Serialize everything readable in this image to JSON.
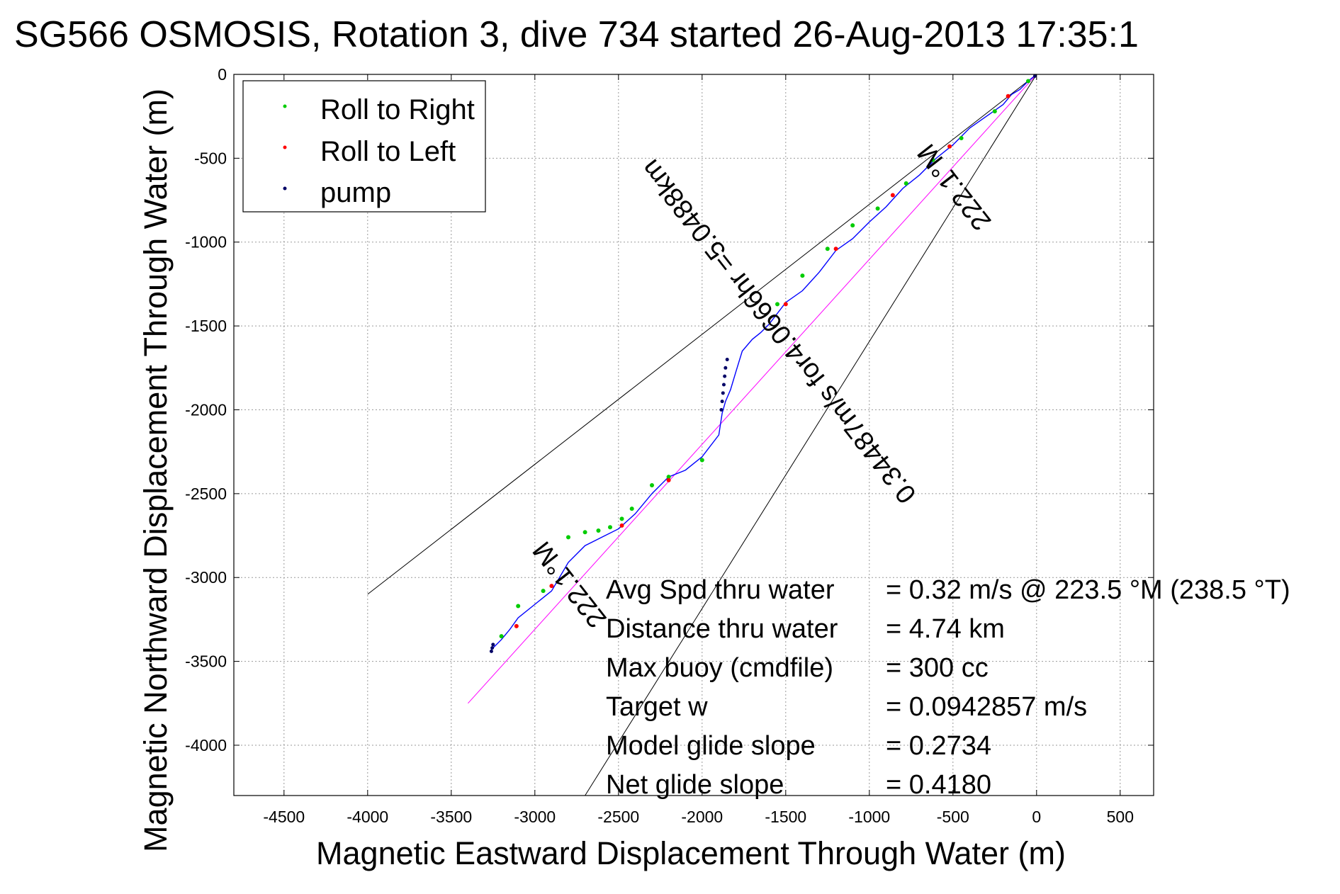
{
  "chart_data": {
    "type": "line",
    "title": "SG566 OSMOSIS, Rotation 3, dive 734 started 26-Aug-2013 17:35:1",
    "xlabel": "Magnetic Eastward Displacement Through Water (m)",
    "ylabel": "Magnetic Northward Displacement Through Water (m)",
    "xlim": [
      -4800,
      700
    ],
    "ylim": [
      -4300,
      0
    ],
    "x_ticks": [
      -4500,
      -4000,
      -3500,
      -3000,
      -2500,
      -2000,
      -1500,
      -1000,
      -500,
      0,
      500
    ],
    "y_ticks": [
      0,
      -500,
      -1000,
      -1500,
      -2000,
      -2500,
      -3000,
      -3500,
      -4000
    ],
    "grid": true,
    "legend_placement": "top-left",
    "legend": [
      {
        "label": "Roll to Right",
        "color": "#00cc00"
      },
      {
        "label": "Roll to Left",
        "color": "#ff0000"
      },
      {
        "label": "pump",
        "color": "#000066"
      }
    ],
    "series": [
      {
        "color": "#0000ff",
        "x": [
          0,
          -50,
          -100,
          -150,
          -200,
          -300,
          -400,
          -500,
          -600,
          -700,
          -800,
          -900,
          -1000,
          -1100,
          -1200,
          -1300,
          -1400,
          -1500,
          -1600,
          -1650,
          -1700,
          -1760,
          -1800,
          -1830,
          -1860,
          -1880,
          -1900,
          -2000,
          -2100,
          -2200,
          -2300,
          -2400,
          -2500,
          -2600,
          -2700,
          -2800,
          -2900,
          -3000,
          -3100,
          -3150,
          -3200,
          -3260
        ],
        "y": [
          0,
          -40,
          -90,
          -120,
          -180,
          -250,
          -320,
          -420,
          -500,
          -600,
          -680,
          -790,
          -880,
          -980,
          -1050,
          -1180,
          -1290,
          -1360,
          -1490,
          -1540,
          -1580,
          -1650,
          -1780,
          -1880,
          -1950,
          -2020,
          -2150,
          -2280,
          -2360,
          -2400,
          -2500,
          -2620,
          -2710,
          -2760,
          -2810,
          -2910,
          -3080,
          -3160,
          -3240,
          -3310,
          -3370,
          -3430
        ]
      },
      {
        "color": "#ff00ff",
        "x": [
          0,
          -3400
        ],
        "y": [
          0,
          -3750
        ]
      },
      {
        "color": "#000000",
        "x": [
          0,
          -4000
        ],
        "y": [
          0,
          -3100
        ]
      },
      {
        "color": "#000000",
        "x": [
          0,
          -2700
        ],
        "y": [
          0,
          -4300
        ]
      }
    ],
    "roll_to_right": {
      "x": [
        -50,
        -250,
        -450,
        -620,
        -780,
        -950,
        -1100,
        -1250,
        -1400,
        -1550,
        -2000,
        -2200,
        -2300,
        -2420,
        -2480,
        -2550,
        -2620,
        -2700,
        -2800,
        -2950,
        -3100,
        -3200
      ],
      "y": [
        -40,
        -220,
        -380,
        -510,
        -650,
        -800,
        -900,
        -1040,
        -1200,
        -1370,
        -2300,
        -2400,
        -2450,
        -2590,
        -2650,
        -2700,
        -2720,
        -2730,
        -2760,
        -3080,
        -3170,
        -3350
      ]
    },
    "roll_to_left": {
      "x": [
        -170,
        -520,
        -860,
        -1200,
        -1500,
        -2200,
        -2480,
        -2900,
        -3110
      ],
      "y": [
        -130,
        -430,
        -720,
        -1040,
        -1370,
        -2420,
        -2690,
        -3050,
        -3290
      ]
    },
    "pump": {
      "x": [
        -10,
        -1850,
        -1860,
        -1865,
        -1870,
        -1875,
        -1880,
        -1885,
        -3250,
        -3255,
        -3260
      ],
      "y": [
        -10,
        -1700,
        -1750,
        -1800,
        -1850,
        -1900,
        -1950,
        -2000,
        -3400,
        -3420,
        -3440
      ]
    },
    "annotations": [
      {
        "text": "222.1°M",
        "x": -450,
        "y": -640,
        "angle": 52
      },
      {
        "text": "0.34487m/s for4.0666hr =5.0488km",
        "x": -1500,
        "y": -1500,
        "angle": 52
      },
      {
        "text": "222.1°M",
        "x": -2750,
        "y": -3010,
        "angle": 52
      }
    ],
    "stats": [
      {
        "label": "Avg Spd thru water",
        "value": "=  0.32 m/s @ 223.5 °M (238.5 °T)"
      },
      {
        "label": "Distance thru water",
        "value": "=  4.74 km"
      },
      {
        "label": "Max buoy (cmdfile)",
        "value": "= 300 cc"
      },
      {
        "label": "Target w",
        "value": "= 0.0942857 m/s"
      },
      {
        "label": "Model glide slope",
        "value": "= 0.2734"
      },
      {
        "label": "Net glide slope",
        "value": "= 0.4180"
      }
    ]
  }
}
